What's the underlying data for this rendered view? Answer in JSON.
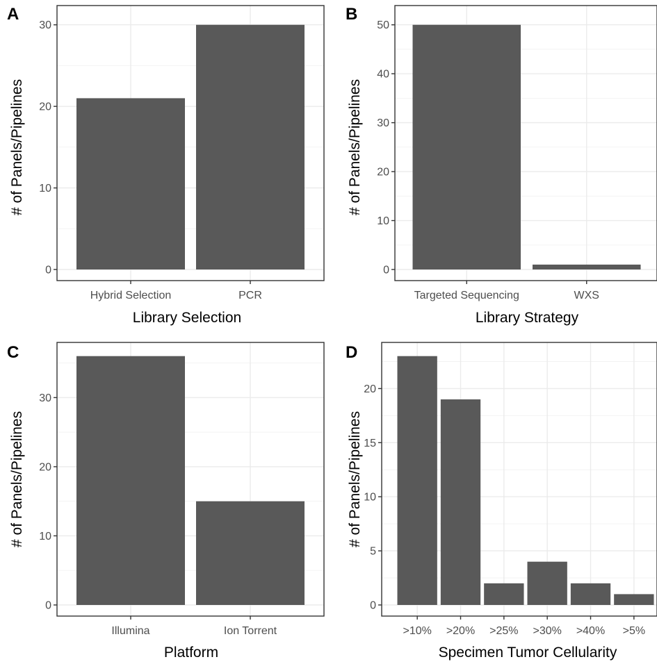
{
  "chart_data": [
    {
      "panel": "A",
      "type": "bar",
      "categories": [
        "Hybrid Selection",
        "PCR"
      ],
      "values": [
        21,
        30
      ],
      "xlabel": "Library Selection",
      "ylabel": "# of Panels/Pipelines",
      "ylim": [
        0,
        30
      ],
      "yticks": [
        0,
        10,
        20,
        30
      ],
      "grid": true,
      "bar_color": "#595959"
    },
    {
      "panel": "B",
      "type": "bar",
      "categories": [
        "Targeted Sequencing",
        "WXS"
      ],
      "values": [
        50,
        1
      ],
      "xlabel": "Library Strategy",
      "ylabel": "# of Panels/Pipelines",
      "ylim": [
        0,
        50
      ],
      "yticks": [
        0,
        10,
        20,
        30,
        40,
        50
      ],
      "grid": true,
      "bar_color": "#595959"
    },
    {
      "panel": "C",
      "type": "bar",
      "categories": [
        "Illumina",
        "Ion Torrent"
      ],
      "values": [
        36,
        15
      ],
      "xlabel": "Platform",
      "ylabel": "# of Panels/Pipelines",
      "ylim": [
        0,
        36
      ],
      "yticks": [
        0,
        10,
        20,
        30
      ],
      "grid": true,
      "bar_color": "#595959"
    },
    {
      "panel": "D",
      "type": "bar",
      "categories": [
        ">10%",
        ">20%",
        ">25%",
        ">30%",
        ">40%",
        ">5%"
      ],
      "values": [
        23,
        19,
        2,
        4,
        2,
        1
      ],
      "xlabel": "Specimen Tumor Cellularity",
      "ylabel": "# of Panels/Pipelines",
      "ylim": [
        0,
        23
      ],
      "yticks": [
        0,
        5,
        10,
        15,
        20
      ],
      "grid": true,
      "bar_color": "#595959"
    }
  ]
}
